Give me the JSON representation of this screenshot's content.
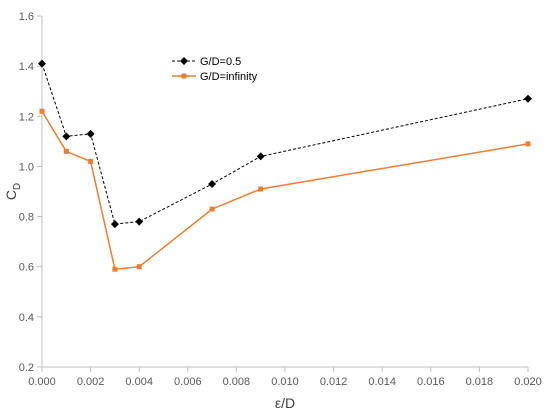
{
  "chart_data": {
    "type": "line",
    "title": "",
    "xlabel": "ε/D",
    "ylabel": "C",
    "ylabel_subscript": "D",
    "xlim": [
      0,
      0.02
    ],
    "ylim": [
      0.2,
      1.6
    ],
    "xticks": [
      0,
      0.002,
      0.004,
      0.006,
      0.008,
      0.01,
      0.012,
      0.014,
      0.016,
      0.018,
      0.02
    ],
    "yticks": [
      0.2,
      0.4,
      0.6,
      0.8,
      1.0,
      1.2,
      1.4,
      1.6
    ],
    "xtick_labels": [
      "0.000",
      "0.002",
      "0.004",
      "0.006",
      "0.008",
      "0.010",
      "0.012",
      "0.014",
      "0.016",
      "0.018",
      "0.020"
    ],
    "ytick_labels": [
      "0.2",
      "0.4",
      "0.6",
      "0.8",
      "1.0",
      "1.2",
      "1.4",
      "1.6"
    ],
    "grid": false,
    "legend_position": "top-center",
    "series": [
      {
        "name": "G/D=0.5",
        "color": "#000000",
        "line_style": "dashed",
        "marker": "diamond",
        "x": [
          0,
          0.001,
          0.002,
          0.003,
          0.004,
          0.007,
          0.009,
          0.02
        ],
        "y": [
          1.41,
          1.12,
          1.13,
          0.77,
          0.78,
          0.93,
          1.04,
          1.27
        ]
      },
      {
        "name": "G/D=infinity",
        "color": "#ed7d31",
        "line_style": "solid",
        "marker": "square",
        "x": [
          0,
          0.001,
          0.002,
          0.003,
          0.004,
          0.007,
          0.009,
          0.02
        ],
        "y": [
          1.22,
          1.06,
          1.02,
          0.59,
          0.6,
          0.83,
          0.91,
          1.09
        ]
      }
    ]
  }
}
